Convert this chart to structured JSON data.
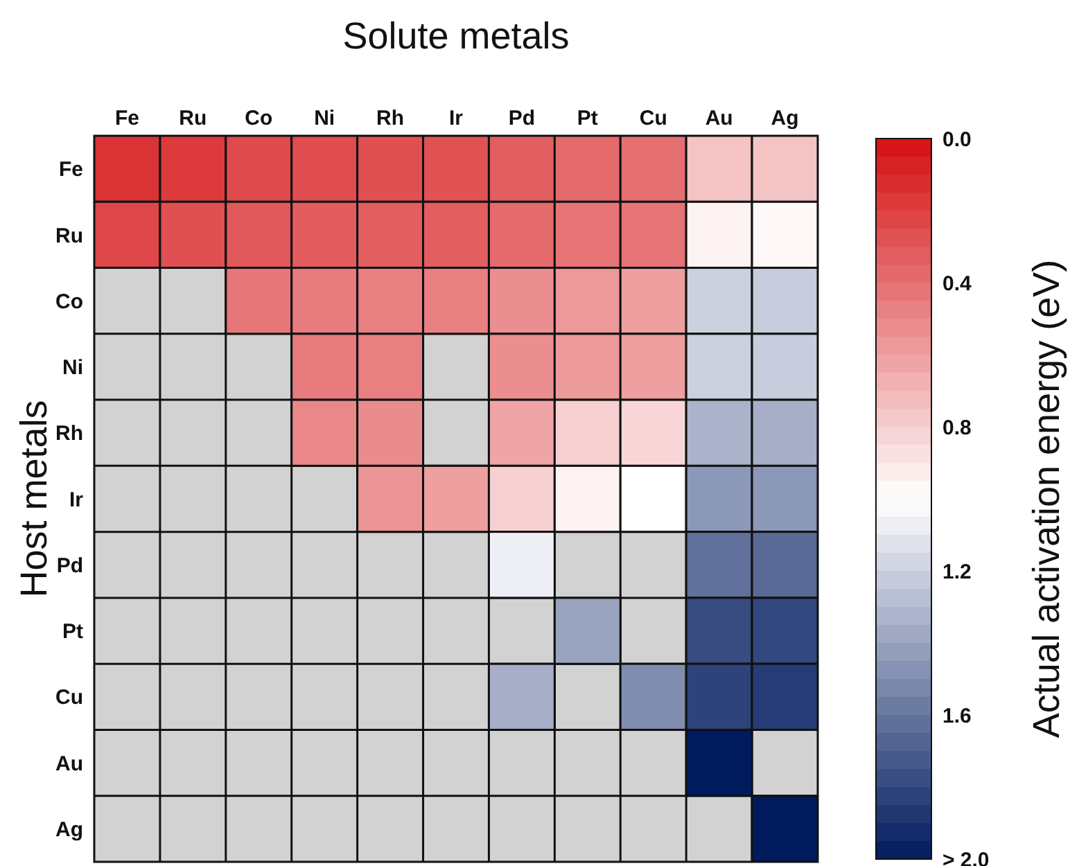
{
  "chart_data": {
    "type": "heatmap",
    "xlabel": "Solute metals",
    "ylabel": "Host metals",
    "clabel": "Actual activation energy (eV)",
    "categories": [
      "Fe",
      "Ru",
      "Co",
      "Ni",
      "Rh",
      "Ir",
      "Pd",
      "Pt",
      "Cu",
      "Au",
      "Ag"
    ],
    "y_categories": [
      "Fe",
      "Ru",
      "Co",
      "Ni",
      "Rh",
      "Ir",
      "Pd",
      "Pt",
      "Cu",
      "Au",
      "Ag"
    ],
    "cells": [
      [
        0.15,
        0.18,
        0.25,
        0.26,
        0.27,
        0.28,
        0.33,
        0.38,
        0.4,
        0.75,
        0.75
      ],
      [
        0.23,
        0.27,
        0.31,
        0.32,
        0.33,
        0.33,
        0.38,
        0.42,
        0.42,
        0.95,
        0.97
      ],
      [
        null,
        null,
        0.43,
        0.45,
        0.47,
        0.47,
        0.53,
        0.57,
        0.6,
        1.2,
        1.22
      ],
      [
        null,
        null,
        null,
        0.45,
        0.47,
        null,
        0.53,
        0.58,
        0.6,
        1.2,
        1.22
      ],
      [
        null,
        null,
        null,
        0.5,
        0.52,
        null,
        0.62,
        0.8,
        0.83,
        1.33,
        1.35
      ],
      [
        null,
        null,
        null,
        null,
        0.56,
        0.6,
        0.8,
        0.95,
        1.0,
        1.45,
        1.45
      ],
      [
        null,
        null,
        null,
        null,
        null,
        null,
        1.07,
        null,
        null,
        1.62,
        1.65
      ],
      [
        null,
        null,
        null,
        null,
        null,
        null,
        null,
        1.4,
        null,
        1.78,
        1.8
      ],
      [
        null,
        null,
        null,
        null,
        null,
        null,
        1.35,
        null,
        1.5,
        1.82,
        1.85
      ],
      [
        null,
        null,
        null,
        null,
        null,
        null,
        null,
        null,
        null,
        2.0,
        null
      ],
      [
        null,
        null,
        null,
        null,
        null,
        null,
        null,
        null,
        null,
        null,
        2.0
      ]
    ],
    "clim": [
      0,
      2.0
    ],
    "cticks": [
      {
        "value": 0,
        "label": "0.0"
      },
      0.4,
      0.8,
      1.2,
      1.6,
      {
        "value": 2.0,
        "label": "> 2.0"
      }
    ]
  }
}
